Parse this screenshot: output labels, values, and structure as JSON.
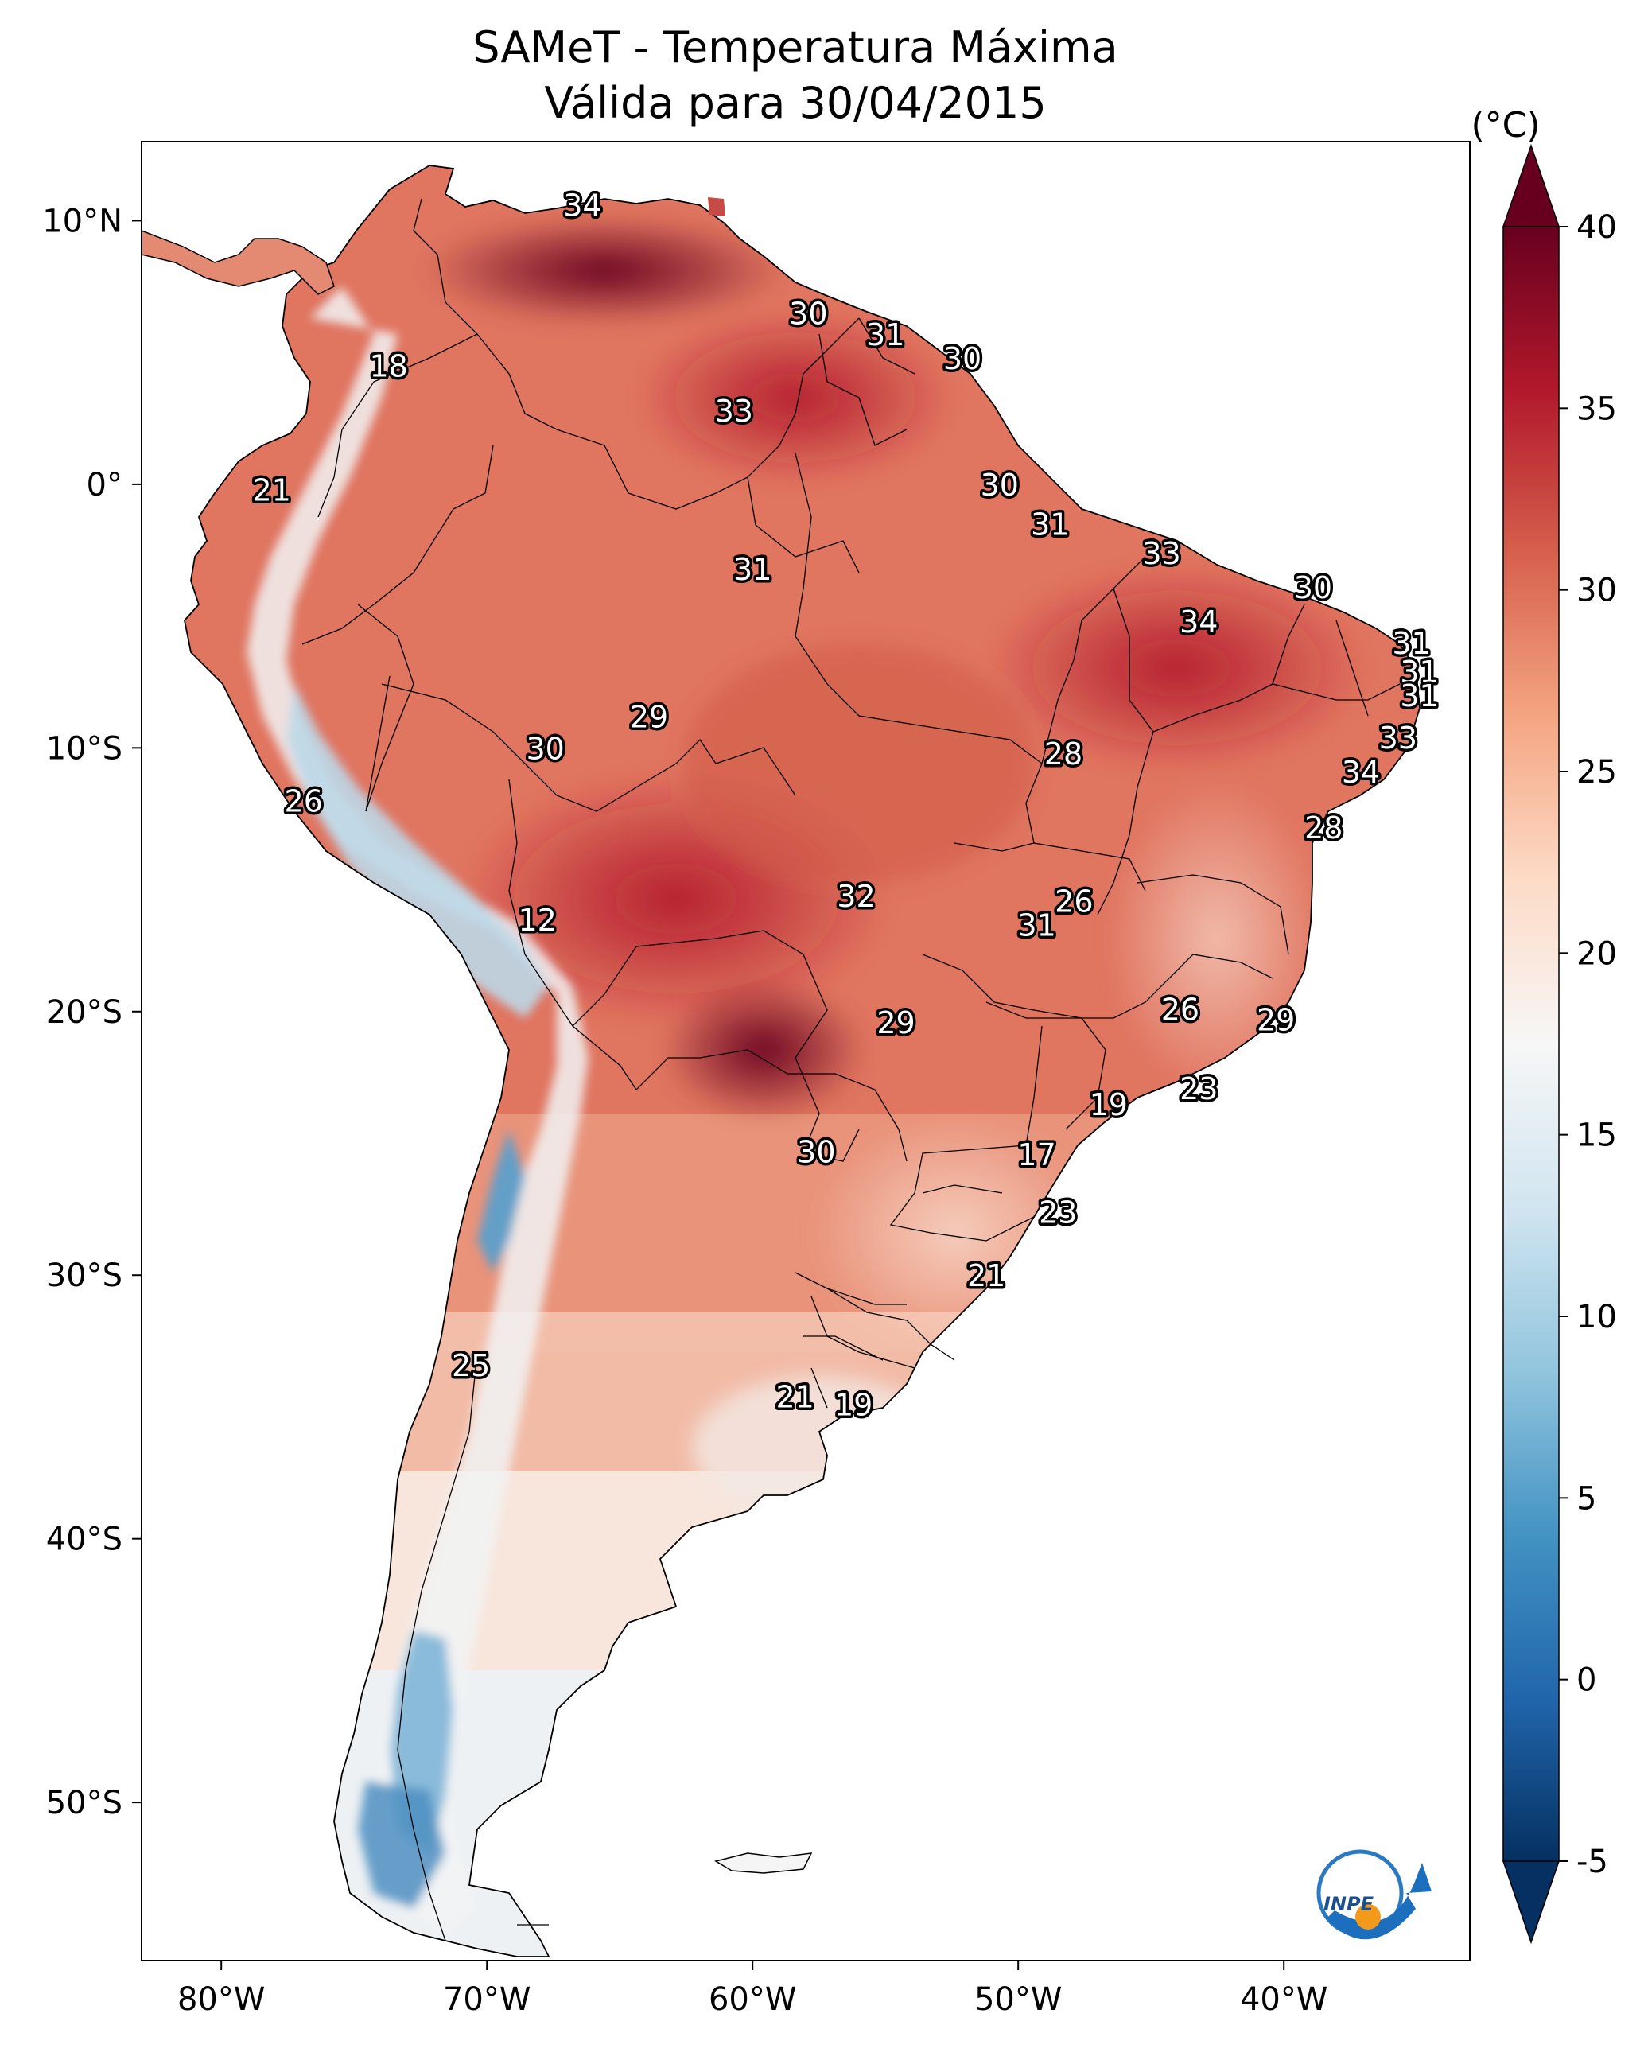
{
  "title": {
    "line1": "SAMeT - Temperatura Máxima",
    "line2": "Válida para 30/04/2015"
  },
  "colorbar": {
    "unit": "(°C)",
    "ticks": [
      "40",
      "35",
      "30",
      "25",
      "20",
      "15",
      "10",
      "5",
      "0",
      "-5"
    ],
    "tick_values": [
      40,
      35,
      30,
      25,
      20,
      15,
      10,
      5,
      0,
      -5
    ],
    "min": -5,
    "max": 40,
    "colors": [
      "#053061",
      "#2166ac",
      "#4393c3",
      "#92c5de",
      "#d1e5f0",
      "#f7f7f7",
      "#fddbc7",
      "#f4a582",
      "#d6604d",
      "#b2182b",
      "#67001f"
    ]
  },
  "axes": {
    "lon_labels": [
      "80°W",
      "70°W",
      "60°W",
      "50°W",
      "40°W"
    ],
    "lon_values": [
      -80,
      -70,
      -60,
      -50,
      -40
    ],
    "lat_labels": [
      "10°N",
      "0°",
      "10°S",
      "20°S",
      "30°S",
      "40°S",
      "50°S"
    ],
    "lat_values": [
      10,
      0,
      -10,
      -20,
      -30,
      -40,
      -50
    ],
    "lon_range": [
      -83,
      -33
    ],
    "lat_range": [
      -56,
      13
    ]
  },
  "station_labels": [
    {
      "v": "34",
      "lon": -66.4,
      "lat": 10.6
    },
    {
      "v": "30",
      "lon": -57.9,
      "lat": 6.5
    },
    {
      "v": "31",
      "lon": -55.0,
      "lat": 5.7
    },
    {
      "v": "30",
      "lon": -52.1,
      "lat": 4.8
    },
    {
      "v": "18",
      "lon": -73.7,
      "lat": 4.5
    },
    {
      "v": "33",
      "lon": -60.7,
      "lat": 2.8
    },
    {
      "v": "21",
      "lon": -78.1,
      "lat": -0.2
    },
    {
      "v": "30",
      "lon": -50.7,
      "lat": 0.0
    },
    {
      "v": "31",
      "lon": -48.8,
      "lat": -1.5
    },
    {
      "v": "33",
      "lon": -44.6,
      "lat": -2.6
    },
    {
      "v": "31",
      "lon": -60.0,
      "lat": -3.2
    },
    {
      "v": "30",
      "lon": -38.9,
      "lat": -3.9
    },
    {
      "v": "34",
      "lon": -43.2,
      "lat": -5.2
    },
    {
      "v": "31",
      "lon": -35.2,
      "lat": -6.0
    },
    {
      "v": "31",
      "lon": -34.9,
      "lat": -7.1
    },
    {
      "v": "31",
      "lon": -34.9,
      "lat": -8.0
    },
    {
      "v": "29",
      "lon": -63.9,
      "lat": -8.8
    },
    {
      "v": "33",
      "lon": -35.7,
      "lat": -9.6
    },
    {
      "v": "30",
      "lon": -67.8,
      "lat": -10.0
    },
    {
      "v": "28",
      "lon": -48.3,
      "lat": -10.2
    },
    {
      "v": "34",
      "lon": -37.1,
      "lat": -10.9
    },
    {
      "v": "26",
      "lon": -76.9,
      "lat": -12.0
    },
    {
      "v": "28",
      "lon": -38.5,
      "lat": -13.0
    },
    {
      "v": "32",
      "lon": -56.1,
      "lat": -15.6
    },
    {
      "v": "26",
      "lon": -47.9,
      "lat": -15.8
    },
    {
      "v": "12",
      "lon": -68.1,
      "lat": -16.5
    },
    {
      "v": "31",
      "lon": -49.3,
      "lat": -16.7
    },
    {
      "v": "26",
      "lon": -43.9,
      "lat": -19.9
    },
    {
      "v": "29",
      "lon": -40.3,
      "lat": -20.3
    },
    {
      "v": "29",
      "lon": -54.6,
      "lat": -20.4
    },
    {
      "v": "23",
      "lon": -43.2,
      "lat": -22.9
    },
    {
      "v": "19",
      "lon": -46.6,
      "lat": -23.5
    },
    {
      "v": "30",
      "lon": -57.6,
      "lat": -25.3
    },
    {
      "v": "17",
      "lon": -49.3,
      "lat": -25.4
    },
    {
      "v": "23",
      "lon": -48.5,
      "lat": -27.6
    },
    {
      "v": "21",
      "lon": -51.2,
      "lat": -30.0
    },
    {
      "v": "25",
      "lon": -70.6,
      "lat": -33.4
    },
    {
      "v": "21",
      "lon": -58.4,
      "lat": -34.6
    },
    {
      "v": "19",
      "lon": -56.2,
      "lat": -34.9
    }
  ],
  "logo": {
    "text": "INPE"
  }
}
